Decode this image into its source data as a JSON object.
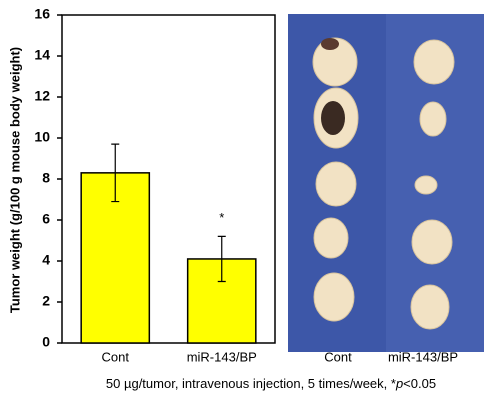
{
  "chart_data": {
    "type": "bar",
    "categories": [
      "Cont",
      "miR-143/BP"
    ],
    "values": [
      8.3,
      4.1
    ],
    "errors": [
      1.4,
      1.1
    ],
    "color": "#ffff00",
    "ylabel": "Tumor weight (g/100 g mouse body weight)",
    "ylim": [
      0,
      16
    ],
    "yticks": [
      0,
      2,
      4,
      6,
      8,
      10,
      12,
      14,
      16
    ],
    "annotations": [
      {
        "text": "*",
        "category": 1
      }
    ]
  },
  "photo": {
    "labels": [
      "Cont",
      "miR-143/BP"
    ]
  },
  "caption": {
    "parts": [
      "50 µg/tumor, intravenous injection, 5 times/week, *",
      "p",
      "<0.05"
    ]
  }
}
